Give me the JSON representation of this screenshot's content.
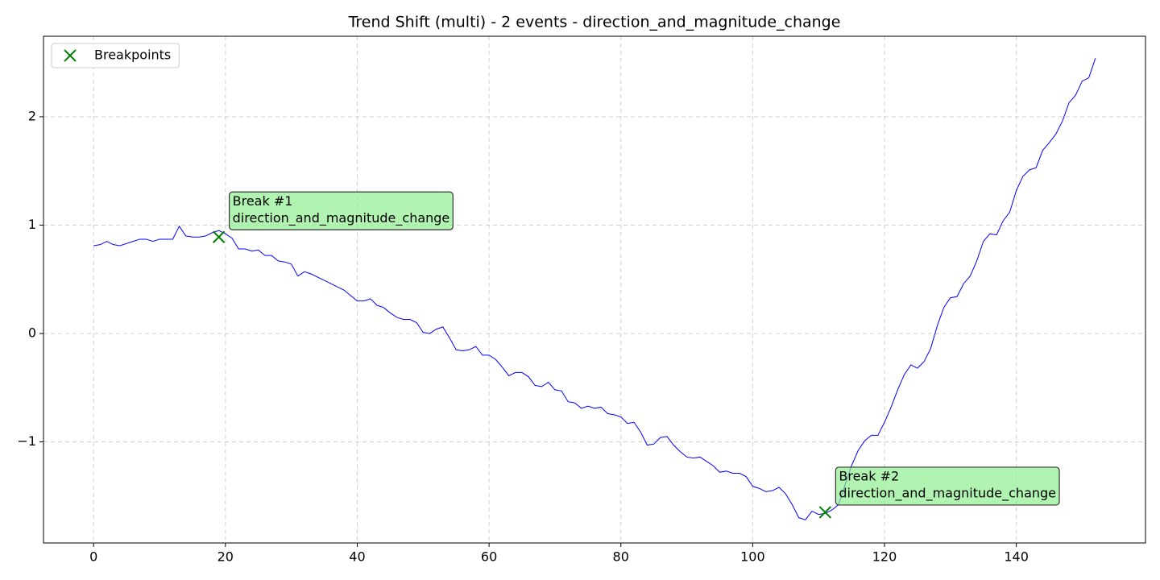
{
  "chart_data": {
    "type": "line",
    "title": "Trend Shift (multi) - 2 events - direction_and_magnitude_change",
    "x": [
      0,
      1,
      2,
      3,
      4,
      5,
      6,
      7,
      8,
      9,
      10,
      11,
      12,
      13,
      14,
      15,
      16,
      17,
      18,
      19,
      20,
      21,
      22,
      23,
      24,
      25,
      26,
      27,
      28,
      29,
      30,
      31,
      32,
      33,
      34,
      35,
      36,
      37,
      38,
      39,
      40,
      41,
      42,
      43,
      44,
      45,
      46,
      47,
      48,
      49,
      50,
      51,
      52,
      53,
      54,
      55,
      56,
      57,
      58,
      59,
      60,
      61,
      62,
      63,
      64,
      65,
      66,
      67,
      68,
      69,
      70,
      71,
      72,
      73,
      74,
      75,
      76,
      77,
      78,
      79,
      80,
      81,
      82,
      83,
      84,
      85,
      86,
      87,
      88,
      89,
      90,
      91,
      92,
      93,
      94,
      95,
      96,
      97,
      98,
      99,
      100,
      101,
      102,
      103,
      104,
      105,
      106,
      107,
      108,
      109,
      110,
      111,
      112,
      113,
      114,
      115,
      116,
      117,
      118,
      119,
      120,
      121,
      122,
      123,
      124,
      125,
      126,
      127,
      128,
      129,
      130,
      131,
      132,
      133,
      134,
      135,
      136,
      137,
      138,
      139,
      140,
      141,
      142,
      143,
      144,
      145,
      146,
      147,
      148,
      149,
      150,
      151,
      152
    ],
    "series": [
      {
        "color": "#0000ff",
        "values": [
          0.81,
          0.82,
          0.85,
          0.82,
          0.81,
          0.83,
          0.85,
          0.87,
          0.87,
          0.85,
          0.87,
          0.87,
          0.87,
          0.99,
          0.9,
          0.89,
          0.89,
          0.9,
          0.93,
          0.95,
          0.92,
          0.88,
          0.78,
          0.78,
          0.76,
          0.77,
          0.72,
          0.72,
          0.67,
          0.66,
          0.64,
          0.53,
          0.57,
          0.55,
          0.52,
          0.49,
          0.46,
          0.43,
          0.4,
          0.35,
          0.3,
          0.3,
          0.32,
          0.26,
          0.24,
          0.19,
          0.15,
          0.13,
          0.13,
          0.1,
          0.01,
          0.0,
          0.04,
          0.06,
          -0.04,
          -0.15,
          -0.16,
          -0.15,
          -0.12,
          -0.2,
          -0.2,
          -0.24,
          -0.31,
          -0.39,
          -0.36,
          -0.36,
          -0.4,
          -0.48,
          -0.49,
          -0.45,
          -0.52,
          -0.53,
          -0.63,
          -0.64,
          -0.69,
          -0.67,
          -0.69,
          -0.68,
          -0.74,
          -0.75,
          -0.77,
          -0.83,
          -0.82,
          -0.91,
          -1.03,
          -1.02,
          -0.96,
          -0.95,
          -1.03,
          -1.09,
          -1.14,
          -1.15,
          -1.14,
          -1.18,
          -1.22,
          -1.28,
          -1.27,
          -1.29,
          -1.29,
          -1.32,
          -1.41,
          -1.43,
          -1.46,
          -1.45,
          -1.42,
          -1.48,
          -1.58,
          -1.7,
          -1.72,
          -1.64,
          -1.67,
          -1.66,
          -1.63,
          -1.58,
          -1.4,
          -1.22,
          -1.08,
          -0.99,
          -0.94,
          -0.94,
          -0.82,
          -0.68,
          -0.52,
          -0.38,
          -0.29,
          -0.32,
          -0.26,
          -0.14,
          0.07,
          0.24,
          0.33,
          0.34,
          0.46,
          0.53,
          0.67,
          0.85,
          0.92,
          0.91,
          1.04,
          1.12,
          1.32,
          1.45,
          1.51,
          1.53,
          1.69,
          1.76,
          1.84,
          1.96,
          2.13,
          2.2,
          2.33,
          2.36,
          2.54
        ]
      }
    ],
    "breakpoints": {
      "name": "Breakpoints",
      "color": "#008000",
      "x": [
        19,
        111
      ],
      "y": [
        0.89,
        -1.65
      ]
    },
    "annotations": [
      {
        "lines": [
          "Break #1",
          "direction_and_magnitude_change"
        ]
      },
      {
        "lines": [
          "Break #2",
          "direction_and_magnitude_change"
        ]
      }
    ],
    "annotation_color": "#90ee90",
    "xlim": [
      -7.6,
      159.6
    ],
    "xticks": [
      0,
      20,
      40,
      60,
      80,
      100,
      120,
      140
    ],
    "ylim": [
      -1.933,
      2.743
    ],
    "yticks": [
      {
        "value": -1,
        "label": "−1"
      },
      0,
      1,
      2
    ],
    "grid": true,
    "legend": "upper-left"
  }
}
